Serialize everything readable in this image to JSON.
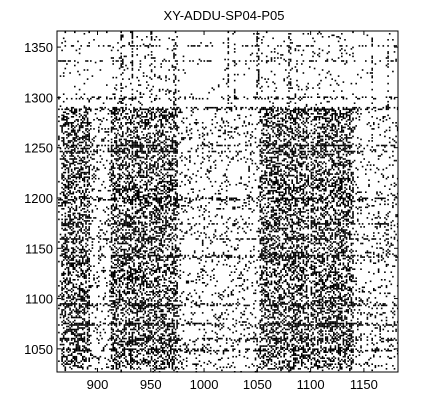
{
  "chart_data": {
    "type": "heatmap",
    "title": "XY-ADDU-SP04-P05",
    "xlabel": "",
    "ylabel": "",
    "xlim": [
      862,
      1182
    ],
    "ylim": [
      1027,
      1366
    ],
    "xticks": [
      900,
      950,
      1000,
      1050,
      1100,
      1150
    ],
    "yticks": [
      1050,
      1100,
      1150,
      1200,
      1250,
      1300,
      1350
    ],
    "grid": false,
    "colors": {
      "marks": "#000000",
      "background": "#ffffff"
    },
    "dense_bands_x": [
      [
        866,
        892
      ],
      [
        912,
        975
      ],
      [
        1052,
        1098
      ],
      [
        1100,
        1140
      ]
    ],
    "dense_bands_y": [
      [
        1030,
        1290
      ]
    ],
    "sparse_rows_y": [
      1050,
      1060,
      1075,
      1095,
      1143,
      1160,
      1175,
      1200,
      1247,
      1253,
      1290,
      1300,
      1337,
      1352
    ],
    "sparse_cols_x": [
      922,
      932,
      950,
      972,
      1022,
      1028,
      1050,
      1080,
      1157,
      1172
    ]
  }
}
